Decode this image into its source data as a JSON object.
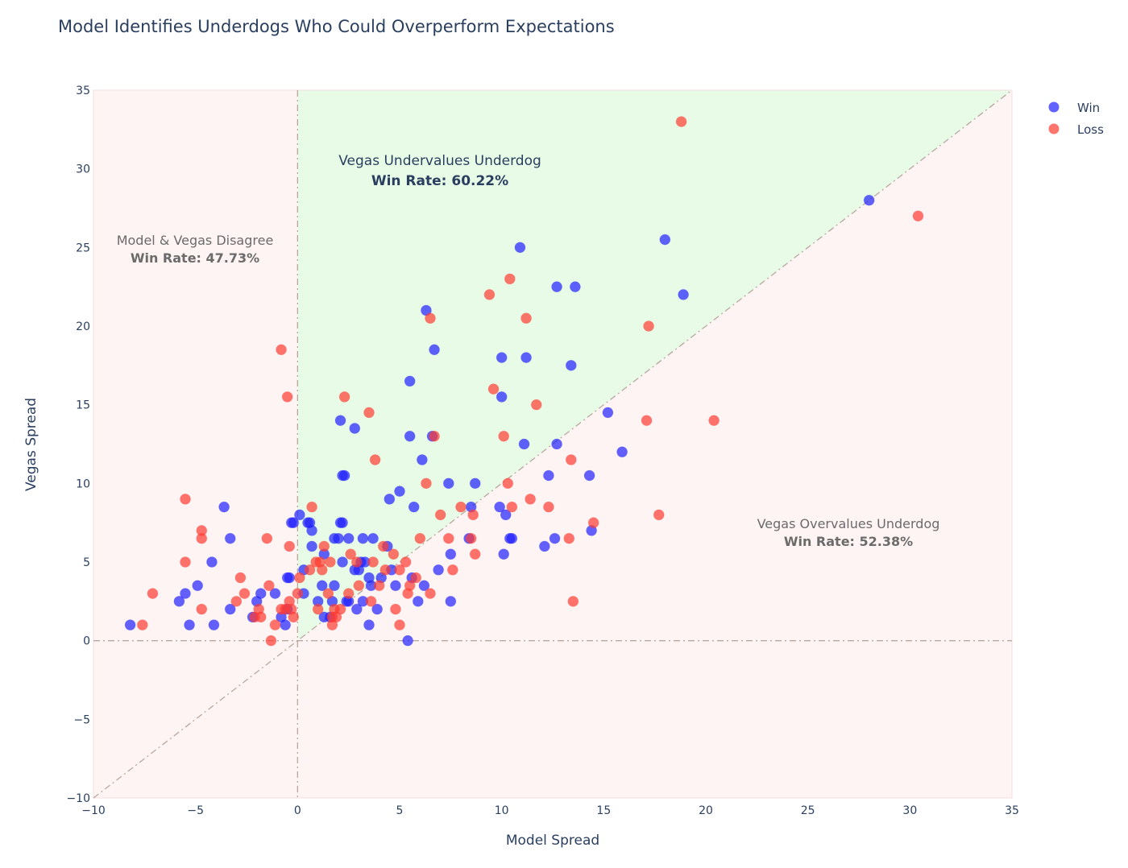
{
  "title": "Model Identifies Underdogs Who Could Overperform Expectations",
  "colors": {
    "win": "#1f1fff",
    "loss": "#ff3b30",
    "green_region": "#e8fbe6",
    "pink_region": "#fff4f4",
    "ref_line": "#b8a79e",
    "text": "#2a3f5f",
    "annotation_grey": "#6b6b6b"
  },
  "legend": {
    "win_label": "Win",
    "loss_label": "Loss"
  },
  "annotations": {
    "top": {
      "line1": "Vegas Undervalues Underdog",
      "line2": "Win Rate: 60.22%"
    },
    "left": {
      "line1": "Model & Vegas Disagree",
      "line2": "Win Rate: 47.73%"
    },
    "right": {
      "line1": "Vegas Overvalues Underdog",
      "line2": "Win Rate: 52.38%"
    }
  },
  "chart_data": {
    "type": "scatter",
    "title": "Model Identifies Underdogs Who Could Overperform Expectations",
    "xlabel": "Model Spread",
    "ylabel": "Vegas Spread",
    "xlim": [
      -10,
      35
    ],
    "ylim": [
      -10,
      35
    ],
    "xticks": [
      -10,
      -5,
      0,
      5,
      10,
      15,
      20,
      25,
      30,
      35
    ],
    "yticks": [
      -10,
      -5,
      0,
      5,
      10,
      15,
      20,
      25,
      30,
      35
    ],
    "tick_labels": [
      "−10",
      "−5",
      "0",
      "5",
      "10",
      "15",
      "20",
      "25",
      "30",
      "35"
    ],
    "grid": false,
    "legend_position": "top-right",
    "reference_lines": [
      "x = 0",
      "y = 0",
      "y = x"
    ],
    "regions": [
      {
        "name": "Vegas Undervalues Underdog",
        "condition": "x > 0 and y > x",
        "win_rate": 60.22
      },
      {
        "name": "Model & Vegas Disagree",
        "condition": "x < 0",
        "win_rate": 47.73
      },
      {
        "name": "Vegas Overvalues Underdog",
        "condition": "x > 0 and y < x",
        "win_rate": 52.38
      }
    ],
    "series": [
      {
        "name": "Win",
        "points": [
          [
            -8.2,
            1
          ],
          [
            -5.8,
            2.5
          ],
          [
            -5.5,
            3
          ],
          [
            -5.3,
            1
          ],
          [
            -4.9,
            3.5
          ],
          [
            -4.2,
            5
          ],
          [
            -4.1,
            1
          ],
          [
            -3.6,
            8.5
          ],
          [
            -3.3,
            2
          ],
          [
            -3.3,
            6.5
          ],
          [
            -2.2,
            1.5
          ],
          [
            -2,
            2.5
          ],
          [
            -1.8,
            3
          ],
          [
            -1.1,
            3
          ],
          [
            -0.8,
            1.5
          ],
          [
            -0.6,
            1
          ],
          [
            -0.5,
            2
          ],
          [
            -0.5,
            4
          ],
          [
            -0.4,
            4
          ],
          [
            -0.3,
            7.5
          ],
          [
            -0.2,
            7.5
          ],
          [
            0.1,
            8
          ],
          [
            0.3,
            4.5
          ],
          [
            0.3,
            3
          ],
          [
            0.5,
            7.5
          ],
          [
            0.6,
            7.5
          ],
          [
            0.7,
            7
          ],
          [
            0.7,
            6
          ],
          [
            1,
            2.5
          ],
          [
            1.2,
            3.5
          ],
          [
            1.3,
            5.5
          ],
          [
            1.3,
            1.5
          ],
          [
            1.6,
            1.5
          ],
          [
            1.7,
            2.5
          ],
          [
            1.8,
            3.5
          ],
          [
            1.8,
            6.5
          ],
          [
            2,
            6.5
          ],
          [
            2.1,
            7.5
          ],
          [
            2.1,
            14
          ],
          [
            2.2,
            10.5
          ],
          [
            2.2,
            7.5
          ],
          [
            2.2,
            5
          ],
          [
            2.3,
            10.5
          ],
          [
            2.4,
            2.5
          ],
          [
            2.5,
            2.5
          ],
          [
            2.5,
            6.5
          ],
          [
            2.8,
            4.5
          ],
          [
            2.8,
            13.5
          ],
          [
            2.9,
            2
          ],
          [
            3,
            4.5
          ],
          [
            3.1,
            5
          ],
          [
            3.2,
            2.5
          ],
          [
            3.2,
            6.5
          ],
          [
            3.3,
            5
          ],
          [
            3.5,
            4
          ],
          [
            3.5,
            1
          ],
          [
            3.6,
            3.5
          ],
          [
            3.7,
            6.5
          ],
          [
            3.9,
            2
          ],
          [
            4.1,
            4
          ],
          [
            4.4,
            6
          ],
          [
            4.5,
            9
          ],
          [
            4.6,
            4.5
          ],
          [
            4.8,
            3.5
          ],
          [
            5,
            9.5
          ],
          [
            5.4,
            0
          ],
          [
            5.5,
            16.5
          ],
          [
            5.5,
            13
          ],
          [
            5.6,
            4
          ],
          [
            5.7,
            8.5
          ],
          [
            5.9,
            2.5
          ],
          [
            6.1,
            11.5
          ],
          [
            6.2,
            3.5
          ],
          [
            6.3,
            21
          ],
          [
            6.6,
            13
          ],
          [
            6.7,
            18.5
          ],
          [
            6.9,
            4.5
          ],
          [
            7.4,
            10
          ],
          [
            7.5,
            5.5
          ],
          [
            7.5,
            2.5
          ],
          [
            8.4,
            6.5
          ],
          [
            8.5,
            8.5
          ],
          [
            8.7,
            10
          ],
          [
            9.9,
            8.5
          ],
          [
            10,
            18
          ],
          [
            10,
            15.5
          ],
          [
            10.1,
            5.5
          ],
          [
            10.2,
            8
          ],
          [
            10.4,
            6.5
          ],
          [
            10.5,
            6.5
          ],
          [
            10.9,
            25
          ],
          [
            11.1,
            12.5
          ],
          [
            11.2,
            18
          ],
          [
            12.1,
            6
          ],
          [
            12.3,
            10.5
          ],
          [
            12.6,
            6.5
          ],
          [
            12.7,
            12.5
          ],
          [
            12.7,
            22.5
          ],
          [
            13.4,
            17.5
          ],
          [
            13.6,
            22.5
          ],
          [
            14.3,
            10.5
          ],
          [
            14.4,
            7
          ],
          [
            15.2,
            14.5
          ],
          [
            15.9,
            12
          ],
          [
            18,
            25.5
          ],
          [
            18.9,
            22
          ],
          [
            28,
            28
          ]
        ]
      },
      {
        "name": "Loss",
        "points": [
          [
            -7.6,
            1
          ],
          [
            -7.1,
            3
          ],
          [
            -5.5,
            9
          ],
          [
            -5.5,
            5
          ],
          [
            -4.7,
            6.5
          ],
          [
            -4.7,
            7
          ],
          [
            -4.7,
            2
          ],
          [
            -3,
            2.5
          ],
          [
            -2.8,
            4
          ],
          [
            -2.6,
            3
          ],
          [
            -2.1,
            1.5
          ],
          [
            -1.9,
            2
          ],
          [
            -1.8,
            1.5
          ],
          [
            -1.5,
            6.5
          ],
          [
            -1.4,
            3.5
          ],
          [
            -1.3,
            0
          ],
          [
            -1.1,
            1
          ],
          [
            -0.8,
            18.5
          ],
          [
            -0.8,
            2
          ],
          [
            -0.6,
            2
          ],
          [
            -0.5,
            15.5
          ],
          [
            -0.4,
            2.5
          ],
          [
            -0.4,
            6
          ],
          [
            -0.3,
            2
          ],
          [
            -0.2,
            1.5
          ],
          [
            0,
            3
          ],
          [
            0.1,
            4
          ],
          [
            0.6,
            4.5
          ],
          [
            0.7,
            8.5
          ],
          [
            0.9,
            5
          ],
          [
            1,
            2
          ],
          [
            1.1,
            5
          ],
          [
            1.2,
            4.5
          ],
          [
            1.3,
            6
          ],
          [
            1.5,
            3
          ],
          [
            1.6,
            5
          ],
          [
            1.7,
            1.5
          ],
          [
            1.7,
            1
          ],
          [
            1.8,
            2
          ],
          [
            1.9,
            1.5
          ],
          [
            2.1,
            2
          ],
          [
            2.3,
            15.5
          ],
          [
            2.5,
            3
          ],
          [
            2.6,
            5.5
          ],
          [
            2.9,
            5
          ],
          [
            3,
            3.5
          ],
          [
            3.5,
            14.5
          ],
          [
            3.6,
            2.5
          ],
          [
            3.7,
            5
          ],
          [
            3.8,
            11.5
          ],
          [
            4,
            3.5
          ],
          [
            4.2,
            6
          ],
          [
            4.3,
            4.5
          ],
          [
            4.7,
            5.5
          ],
          [
            4.8,
            2
          ],
          [
            5,
            4.5
          ],
          [
            5,
            1
          ],
          [
            5.3,
            5
          ],
          [
            5.4,
            3
          ],
          [
            5.5,
            3.5
          ],
          [
            5.8,
            4
          ],
          [
            6,
            6.5
          ],
          [
            6.3,
            10
          ],
          [
            6.5,
            20.5
          ],
          [
            6.5,
            3
          ],
          [
            6.7,
            13
          ],
          [
            7,
            8
          ],
          [
            7.4,
            6.5
          ],
          [
            7.6,
            4.5
          ],
          [
            8,
            8.5
          ],
          [
            8.5,
            6.5
          ],
          [
            8.6,
            8
          ],
          [
            8.7,
            5.5
          ],
          [
            9.4,
            22
          ],
          [
            9.6,
            16
          ],
          [
            10.1,
            13
          ],
          [
            10.3,
            10
          ],
          [
            10.4,
            23
          ],
          [
            10.5,
            8.5
          ],
          [
            11.2,
            20.5
          ],
          [
            11.4,
            9
          ],
          [
            11.7,
            15
          ],
          [
            12.3,
            8.5
          ],
          [
            13.3,
            6.5
          ],
          [
            13.4,
            11.5
          ],
          [
            13.5,
            2.5
          ],
          [
            14.5,
            7.5
          ],
          [
            17.1,
            14
          ],
          [
            17.2,
            20
          ],
          [
            17.7,
            8
          ],
          [
            18.8,
            33
          ],
          [
            20.4,
            14
          ],
          [
            30.4,
            27
          ]
        ]
      }
    ]
  }
}
